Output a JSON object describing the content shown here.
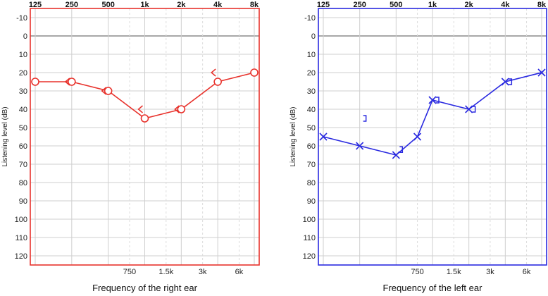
{
  "chart_data": [
    {
      "type": "line",
      "xlabel": "Frequency of the right ear",
      "ylabel": "Listening level (dB)",
      "top_ticks": [
        "125",
        "250",
        "500",
        "1k",
        "2k",
        "4k",
        "8k"
      ],
      "bottom_ticks": [
        "750",
        "1.5k",
        "3k",
        "6k"
      ],
      "y_ticks": [
        "-10",
        "0",
        "10",
        "20",
        "30",
        "40",
        "50",
        "60",
        "70",
        "80",
        "90",
        "100",
        "110",
        "120"
      ],
      "ylim": [
        -15,
        125
      ],
      "y_inverted": true,
      "grid": true,
      "color": "#e8322c",
      "series": [
        {
          "marker": "circle",
          "x": [
            "125",
            "250",
            "500",
            "1k",
            "2k",
            "4k",
            "8k"
          ],
          "values": [
            25,
            25,
            30,
            45,
            40,
            25,
            20
          ]
        },
        {
          "marker": "bone-right",
          "x": [
            "250",
            "500",
            "1k",
            "2k",
            "4k"
          ],
          "values": [
            25,
            30,
            40,
            40,
            20
          ]
        }
      ]
    },
    {
      "type": "line",
      "xlabel": "Frequency of the left ear",
      "ylabel": "Listening level (dB)",
      "top_ticks": [
        "125",
        "250",
        "500",
        "1k",
        "2k",
        "4k",
        "8k"
      ],
      "bottom_ticks": [
        "750",
        "1.5k",
        "3k",
        "6k"
      ],
      "y_ticks": [
        "-10",
        "0",
        "10",
        "20",
        "30",
        "40",
        "50",
        "60",
        "70",
        "80",
        "90",
        "100",
        "110",
        "120"
      ],
      "ylim": [
        -15,
        125
      ],
      "y_inverted": true,
      "grid": true,
      "color": "#2a2ae0",
      "series": [
        {
          "marker": "cross",
          "x": [
            "125",
            "250",
            "500",
            "750",
            "1k",
            "2k",
            "4k",
            "8k"
          ],
          "values": [
            55,
            60,
            65,
            55,
            35,
            40,
            25,
            20
          ]
        },
        {
          "marker": "bone-left",
          "x": [
            "250",
            "500",
            "1k",
            "2k",
            "4k"
          ],
          "values": [
            45,
            62,
            35,
            40,
            25
          ]
        }
      ]
    }
  ]
}
